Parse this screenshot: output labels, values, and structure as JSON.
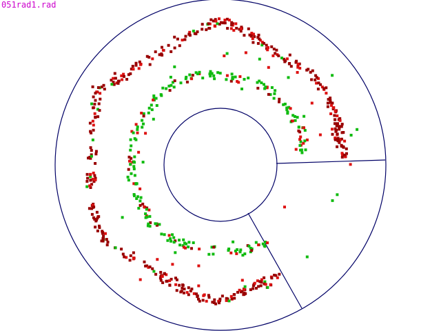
{
  "file_label": "051rad1.rad",
  "colors": {
    "background": "#ffffff",
    "label": "#cc00cc",
    "frame": "#000066",
    "dark_red": "#990000",
    "red": "#dd1111",
    "green": "#11bb11"
  },
  "plot": {
    "outer_ring": "circle",
    "inner_ring": "circle",
    "divider_lines": 2
  }
}
